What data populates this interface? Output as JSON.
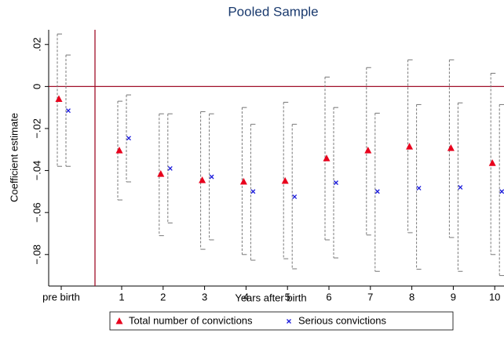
{
  "chart_data": {
    "type": "errorbar",
    "title": "Pooled Sample",
    "xlabel": "Years after birth",
    "ylabel": "Coefficient estimate",
    "categories": [
      "pre birth",
      "1",
      "2",
      "3",
      "4",
      "5",
      "6",
      "7",
      "8",
      "9",
      "10"
    ],
    "ylim": [
      -0.095,
      0.027
    ],
    "yticks": [
      {
        "value": 0.02,
        "label": ".02"
      },
      0,
      {
        "value": -0.02,
        "label": "−.02"
      },
      {
        "value": -0.04,
        "label": "−.04"
      },
      {
        "value": -0.06,
        "label": "−.06"
      },
      {
        "value": -0.08,
        "label": "−.08"
      }
    ],
    "reference_line": 0,
    "series": [
      {
        "name": "Total number of convictions",
        "color": "#e8001c",
        "marker": "triangle",
        "values": [
          -0.006,
          -0.0305,
          -0.0417,
          -0.0447,
          -0.0454,
          -0.045,
          -0.0343,
          -0.0305,
          -0.0287,
          -0.0294,
          -0.0365
        ],
        "lower": [
          -0.038,
          -0.054,
          -0.071,
          -0.0775,
          -0.08,
          -0.082,
          -0.073,
          -0.0707,
          -0.0696,
          -0.0719,
          -0.08
        ],
        "upper": [
          0.025,
          -0.007,
          -0.013,
          -0.012,
          -0.01,
          -0.0075,
          0.0045,
          0.009,
          0.0127,
          0.0127,
          0.0063
        ]
      },
      {
        "name": "Serious convictions",
        "color": "#1a1adb",
        "marker": "x",
        "values": [
          -0.0115,
          -0.0246,
          -0.039,
          -0.043,
          -0.05,
          -0.0525,
          -0.0458,
          -0.05,
          -0.0484,
          -0.048,
          -0.05
        ],
        "lower": [
          -0.038,
          -0.0454,
          -0.065,
          -0.073,
          -0.0827,
          -0.0868,
          -0.0816,
          -0.088,
          -0.087,
          -0.088,
          -0.09
        ],
        "upper": [
          0.015,
          -0.004,
          -0.013,
          -0.013,
          -0.018,
          -0.018,
          -0.01,
          -0.0127,
          -0.0086,
          -0.0078,
          -0.0086
        ]
      }
    ]
  }
}
